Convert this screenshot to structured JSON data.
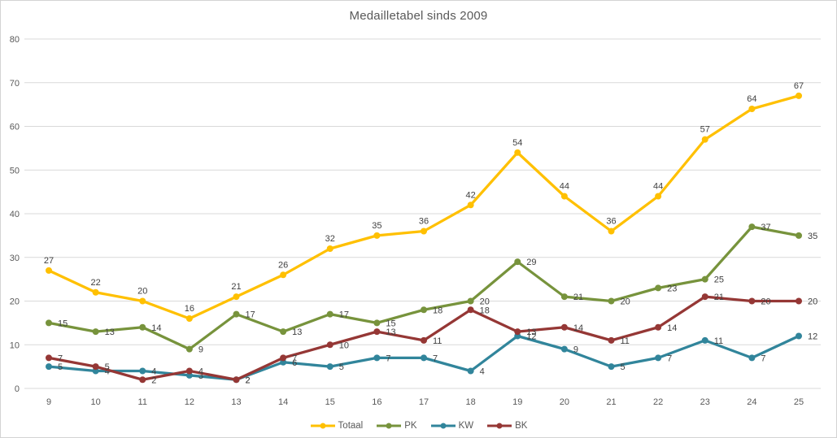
{
  "chart_data": {
    "type": "line",
    "title": "Medailletabel sinds 2009",
    "x": [
      9,
      10,
      11,
      12,
      13,
      14,
      15,
      16,
      17,
      18,
      19,
      20,
      21,
      22,
      23,
      24,
      25
    ],
    "series": [
      {
        "name": "Totaal",
        "color": "#FFC000",
        "label_position": "above",
        "values": [
          27,
          22,
          20,
          16,
          21,
          26,
          32,
          35,
          36,
          42,
          54,
          44,
          36,
          44,
          57,
          64,
          67
        ]
      },
      {
        "name": "PK",
        "color": "#77933C",
        "label_position": "right",
        "values": [
          15,
          13,
          14,
          9,
          17,
          13,
          17,
          15,
          18,
          20,
          29,
          21,
          20,
          23,
          25,
          37,
          35
        ]
      },
      {
        "name": "KW",
        "color": "#31859B",
        "label_position": "right",
        "values": [
          5,
          4,
          4,
          3,
          2,
          6,
          5,
          7,
          7,
          4,
          12,
          9,
          5,
          7,
          11,
          7,
          12
        ]
      },
      {
        "name": "BK",
        "color": "#953735",
        "label_position": "right",
        "values": [
          7,
          5,
          2,
          4,
          2,
          7,
          10,
          13,
          11,
          18,
          13,
          14,
          11,
          14,
          21,
          20,
          20
        ]
      }
    ],
    "ylim": [
      0,
      80
    ],
    "ytick_step": 10,
    "ytick_labels": [
      "0",
      "10",
      "20",
      "30",
      "40",
      "50",
      "60",
      "70",
      "80"
    ],
    "grid": true,
    "legend_position": "bottom",
    "axis_color": "#595959",
    "grid_color": "#D9D9D9",
    "data_label_color": "#404040"
  }
}
